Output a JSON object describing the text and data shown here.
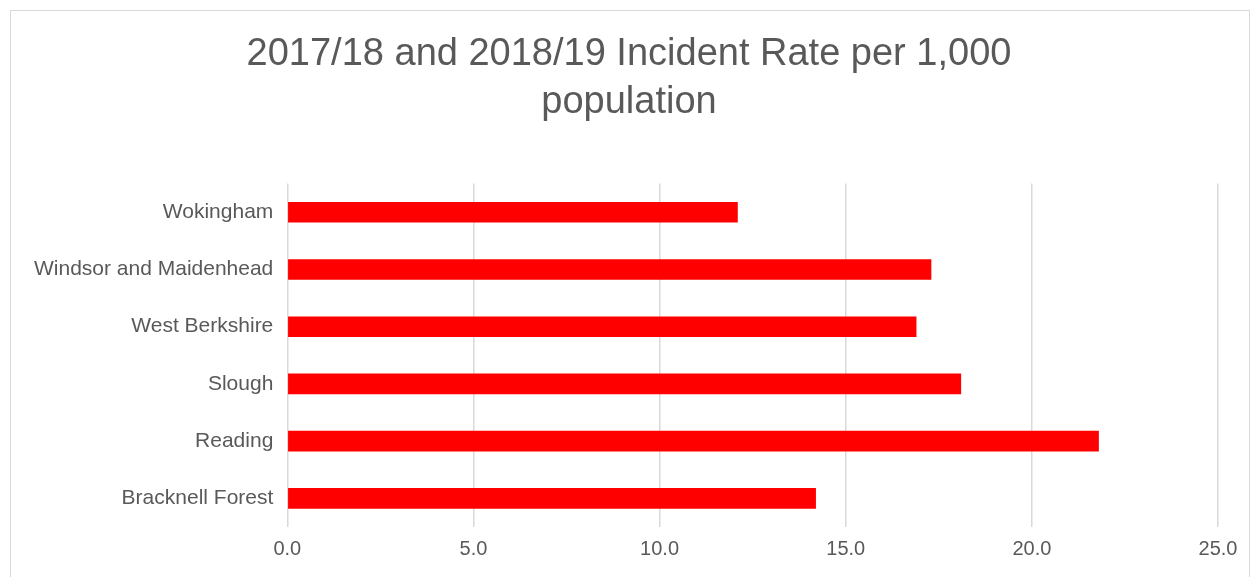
{
  "chart_data": {
    "type": "bar",
    "orientation": "horizontal",
    "title": "2017/18 and 2018/19 Incident Rate per 1,000 population",
    "categories": [
      "Wokingham",
      "Windsor and Maidenhead",
      "West Berkshire",
      "Slough",
      "Reading",
      "Bracknell Forest"
    ],
    "values": [
      12.1,
      17.3,
      16.9,
      18.1,
      21.8,
      14.2
    ],
    "color": "#ff0000",
    "xlim": [
      0,
      25
    ],
    "xticks": [
      {
        "value": 0,
        "label": "0.0"
      },
      {
        "value": 5,
        "label": "5.0"
      },
      {
        "value": 10,
        "label": "10.0"
      },
      {
        "value": 15,
        "label": "15.0"
      },
      {
        "value": 20,
        "label": "20.0"
      },
      {
        "value": 25,
        "label": "25.0"
      }
    ],
    "grid": "x"
  }
}
